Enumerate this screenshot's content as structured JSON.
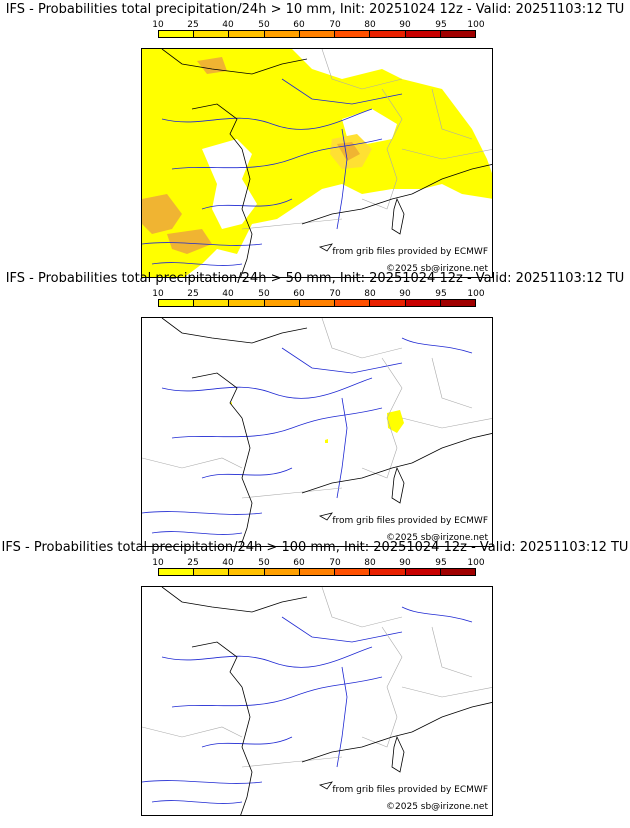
{
  "scale": {
    "ticks": [
      "10",
      "25",
      "40",
      "50",
      "60",
      "70",
      "80",
      "90",
      "95",
      "100"
    ],
    "colors": [
      "#ffff00",
      "#ffe000",
      "#ffc000",
      "#ffa000",
      "#ff8000",
      "#ff5000",
      "#e82000",
      "#c80000",
      "#a00000",
      "#700000"
    ]
  },
  "panels": [
    {
      "title": "IFS - Probabilities total precipitation/24h > 10 mm, Init: 20251024 12z - Valid: 20251103:12 TU",
      "source": "from grib files provided by ECMWF",
      "copyright": "©2025 sb@irizone.net",
      "coverage": "widespread"
    },
    {
      "title": "IFS - Probabilities total precipitation/24h > 50 mm, Init: 20251024 12z - Valid: 20251103:12 TU",
      "source": "from grib files provided by ECMWF",
      "copyright": "©2025 sb@irizone.net",
      "coverage": "local-alps"
    },
    {
      "title": "IFS - Probabilities total precipitation/24h > 100 mm, Init: 20251024 12z - Valid: 20251103:12 TU",
      "source": "from grib files provided by ECMWF",
      "copyright": "©2025 sb@irizone.net",
      "coverage": "none"
    }
  ],
  "colors": {
    "coast": "#000000",
    "river": "#1e28d2",
    "border": "#aaaaaa",
    "rain": "#ffff00",
    "rain_med": "#ffe033",
    "rain_strong": "#f0b432"
  }
}
